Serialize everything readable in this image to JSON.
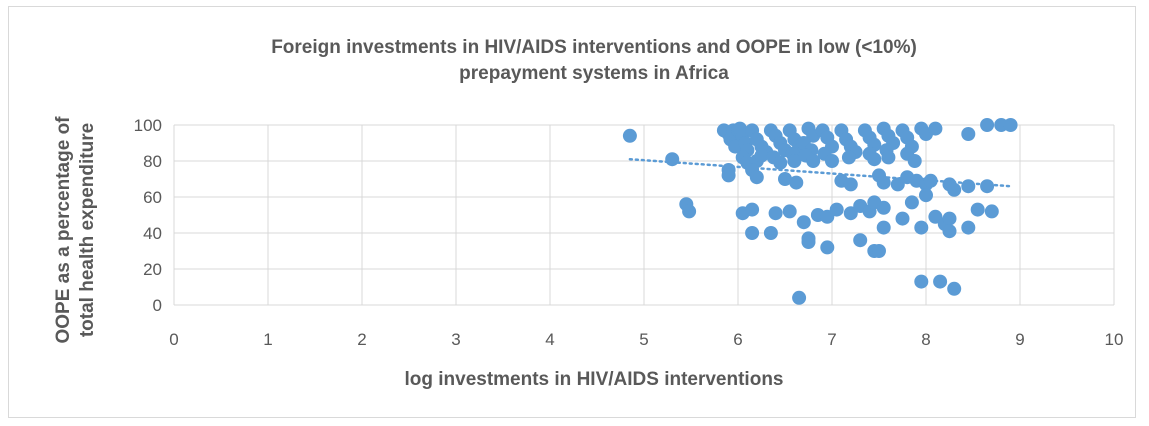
{
  "chart_data": {
    "type": "scatter",
    "title_lines": [
      "Foreign investments in HIV/AIDS interventions and OOPE in low (<10%)",
      "prepayment systems in Africa"
    ],
    "xlabel": "log investments in  HIV/AIDS interventions",
    "ylabel_lines": [
      "OOPE as a percentage of",
      "total health expenditure"
    ],
    "xlim": [
      0,
      10
    ],
    "ylim": [
      0,
      100
    ],
    "x_ticks": [
      "0",
      "1",
      "2",
      "3",
      "4",
      "5",
      "6",
      "7",
      "8",
      "9",
      "10"
    ],
    "y_ticks": [
      "0",
      "20",
      "40",
      "60",
      "80",
      "100"
    ],
    "grid": true,
    "marker_color": "#5b9bd5",
    "trendline": {
      "style": "dotted",
      "color": "#5b9bd5",
      "x": [
        4.85,
        8.9
      ],
      "y": [
        81,
        66
      ]
    },
    "series": [
      {
        "points": [
          [
            4.85,
            94
          ],
          [
            5.3,
            81
          ],
          [
            5.45,
            56
          ],
          [
            5.48,
            52
          ],
          [
            5.85,
            97
          ],
          [
            5.9,
            95
          ],
          [
            5.92,
            92
          ],
          [
            5.95,
            97
          ],
          [
            5.97,
            88
          ],
          [
            5.9,
            75
          ],
          [
            5.9,
            72
          ],
          [
            6.0,
            97
          ],
          [
            6.02,
            98
          ],
          [
            6.05,
            94
          ],
          [
            6.08,
            90
          ],
          [
            6.1,
            86
          ],
          [
            6.05,
            82
          ],
          [
            6.1,
            79
          ],
          [
            6.15,
            97
          ],
          [
            6.2,
            92
          ],
          [
            6.25,
            88
          ],
          [
            6.3,
            85
          ],
          [
            6.2,
            80
          ],
          [
            6.25,
            83
          ],
          [
            6.15,
            75
          ],
          [
            6.2,
            71
          ],
          [
            6.35,
            97
          ],
          [
            6.4,
            94
          ],
          [
            6.45,
            90
          ],
          [
            6.5,
            86
          ],
          [
            6.38,
            82
          ],
          [
            6.45,
            79
          ],
          [
            6.5,
            70
          ],
          [
            6.55,
            97
          ],
          [
            6.6,
            92
          ],
          [
            6.65,
            88
          ],
          [
            6.58,
            84
          ],
          [
            6.6,
            80
          ],
          [
            6.62,
            68
          ],
          [
            6.75,
            98
          ],
          [
            6.8,
            94
          ],
          [
            6.7,
            90
          ],
          [
            6.78,
            86
          ],
          [
            6.72,
            83
          ],
          [
            6.8,
            80
          ],
          [
            6.9,
            97
          ],
          [
            6.95,
            93
          ],
          [
            7.0,
            88
          ],
          [
            6.92,
            84
          ],
          [
            7.0,
            80
          ],
          [
            7.1,
            97
          ],
          [
            7.15,
            92
          ],
          [
            7.2,
            88
          ],
          [
            7.25,
            85
          ],
          [
            7.18,
            82
          ],
          [
            7.1,
            69
          ],
          [
            7.2,
            67
          ],
          [
            7.35,
            97
          ],
          [
            7.4,
            93
          ],
          [
            7.45,
            89
          ],
          [
            7.4,
            84
          ],
          [
            7.45,
            81
          ],
          [
            7.55,
            98
          ],
          [
            7.6,
            94
          ],
          [
            7.65,
            90
          ],
          [
            7.58,
            86
          ],
          [
            7.6,
            82
          ],
          [
            7.75,
            97
          ],
          [
            7.8,
            93
          ],
          [
            7.85,
            88
          ],
          [
            7.8,
            84
          ],
          [
            7.88,
            80
          ],
          [
            7.95,
            98
          ],
          [
            8.0,
            95
          ],
          [
            8.1,
            98
          ],
          [
            8.45,
            95
          ],
          [
            8.65,
            100
          ],
          [
            8.8,
            100
          ],
          [
            8.9,
            100
          ],
          [
            7.5,
            72
          ],
          [
            7.55,
            68
          ],
          [
            7.7,
            67
          ],
          [
            7.8,
            71
          ],
          [
            7.9,
            69
          ],
          [
            8.0,
            67
          ],
          [
            8.05,
            69
          ],
          [
            8.25,
            67
          ],
          [
            8.3,
            64
          ],
          [
            8.45,
            66
          ],
          [
            8.65,
            66
          ],
          [
            6.05,
            51
          ],
          [
            6.15,
            53
          ],
          [
            6.4,
            51
          ],
          [
            6.55,
            52
          ],
          [
            6.85,
            50
          ],
          [
            6.95,
            49
          ],
          [
            7.05,
            53
          ],
          [
            7.2,
            51
          ],
          [
            7.3,
            55
          ],
          [
            7.4,
            52
          ],
          [
            7.45,
            57
          ],
          [
            7.55,
            54
          ],
          [
            7.75,
            48
          ],
          [
            7.85,
            57
          ],
          [
            8.0,
            61
          ],
          [
            8.1,
            49
          ],
          [
            8.2,
            45
          ],
          [
            8.25,
            48
          ],
          [
            8.45,
            43
          ],
          [
            8.55,
            53
          ],
          [
            8.7,
            52
          ],
          [
            6.15,
            40
          ],
          [
            6.35,
            40
          ],
          [
            6.7,
            46
          ],
          [
            6.75,
            37
          ],
          [
            6.75,
            35
          ],
          [
            6.95,
            32
          ],
          [
            7.3,
            36
          ],
          [
            7.45,
            30
          ],
          [
            7.5,
            30
          ],
          [
            7.55,
            43
          ],
          [
            7.95,
            43
          ],
          [
            8.25,
            41
          ],
          [
            7.95,
            13
          ],
          [
            8.15,
            13
          ],
          [
            8.3,
            9
          ],
          [
            6.65,
            4
          ]
        ]
      }
    ]
  }
}
